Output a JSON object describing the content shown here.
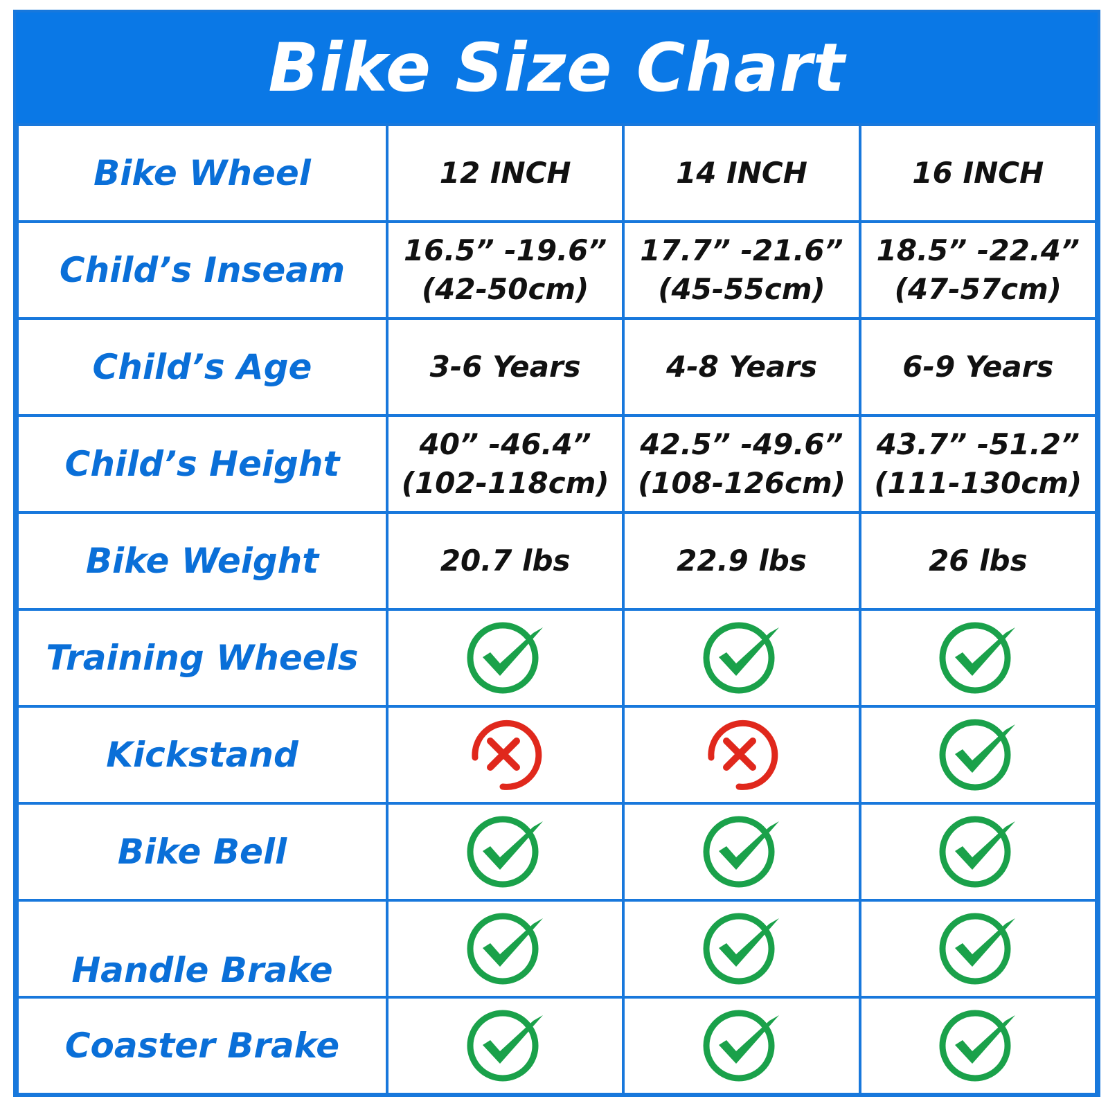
{
  "title": "Bike Size Chart",
  "colors": {
    "header_blue": "#0a78e6",
    "label_blue": "#0a6fd8",
    "grid_blue": "#1878dc",
    "check_green": "#1aa14a",
    "cross_red": "#e0281c"
  },
  "table": {
    "header": {
      "label": "Bike Wheel",
      "sizes": [
        "12 INCH",
        "14 INCH",
        "16 INCH"
      ]
    },
    "text_rows": [
      {
        "label": "Child’s Inseam",
        "values": [
          [
            "16.5” -19.6”",
            "(42-50cm)"
          ],
          [
            "17.7” -21.6”",
            "(45-55cm)"
          ],
          [
            "18.5” -22.4”",
            "(47-57cm)"
          ]
        ]
      },
      {
        "label": "Child’s Age",
        "values": [
          [
            "3-6 Years"
          ],
          [
            "4-8 Years"
          ],
          [
            "6-9 Years"
          ]
        ]
      },
      {
        "label": "Child’s Height",
        "values": [
          [
            "40” -46.4”",
            "(102-118cm)"
          ],
          [
            "42.5” -49.6”",
            "(108-126cm)"
          ],
          [
            "43.7” -51.2”",
            "(111-130cm)"
          ]
        ]
      },
      {
        "label": "Bike Weight",
        "values": [
          [
            "20.7 lbs"
          ],
          [
            "22.9 lbs"
          ],
          [
            "26 lbs"
          ]
        ]
      }
    ],
    "feature_rows": [
      {
        "label": "Training Wheels",
        "included": [
          true,
          true,
          true
        ]
      },
      {
        "label": "Kickstand",
        "included": [
          false,
          false,
          true
        ]
      },
      {
        "label": "Bike Bell",
        "included": [
          true,
          true,
          true
        ]
      },
      {
        "label": "Handle Brake",
        "included": [
          true,
          true,
          true
        ]
      },
      {
        "label": "Coaster Brake",
        "included": [
          true,
          true,
          true
        ]
      }
    ]
  },
  "icons": {
    "included": "check-circle-icon",
    "not_included": "cross-circle-icon"
  }
}
